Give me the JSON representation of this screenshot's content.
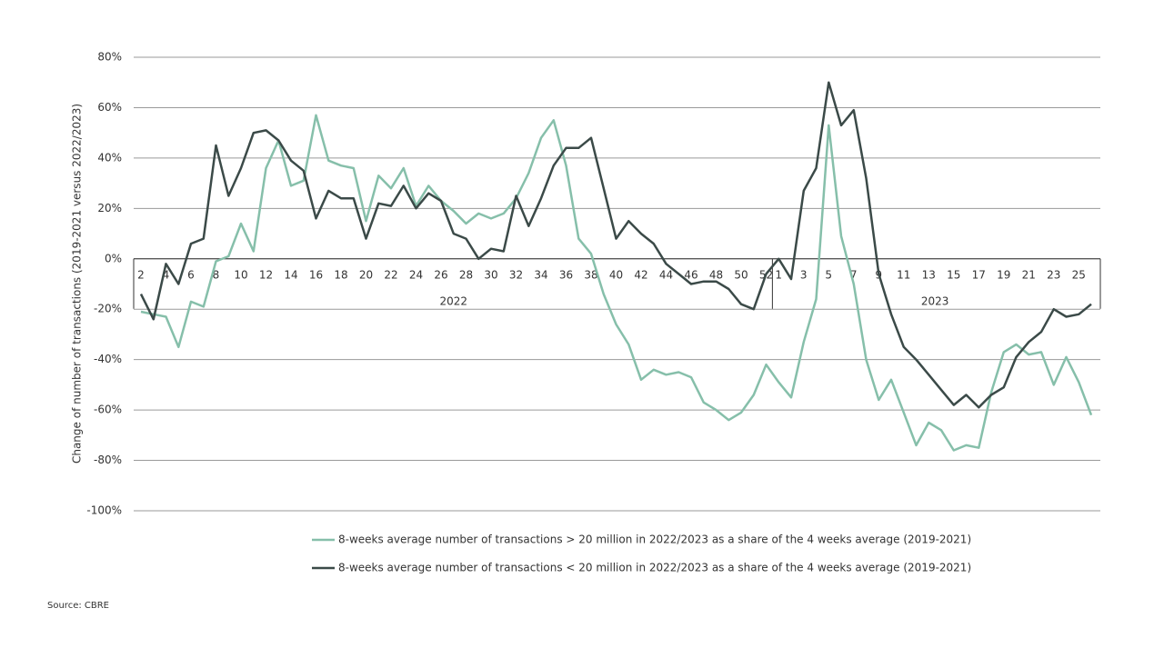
{
  "chart_data": {
    "type": "line",
    "y_label": "Change of number of transactions (2019-2021 versus 2022/2023)",
    "source": "Source: CBRE",
    "category_groups": [
      {
        "name": "2022",
        "categories": [
          2,
          null,
          4,
          null,
          6,
          null,
          8,
          null,
          10,
          null,
          12,
          null,
          14,
          null,
          16,
          null,
          18,
          null,
          20,
          null,
          22,
          null,
          24,
          null,
          26,
          null,
          28,
          null,
          30,
          null,
          32,
          null,
          34,
          null,
          36,
          null,
          38,
          null,
          40,
          null,
          42,
          null,
          44,
          null,
          46,
          null,
          48,
          null,
          50,
          null,
          52
        ]
      },
      {
        "name": "2023",
        "categories": [
          1,
          null,
          3,
          null,
          5,
          null,
          7,
          null,
          9,
          null,
          11,
          null,
          13,
          null,
          15,
          null,
          17,
          null,
          19,
          null,
          21,
          null,
          23,
          null,
          25,
          null
        ]
      }
    ],
    "series": [
      {
        "name": "8-weeks average number of transactions > 20 million in 2022/2023 as a share of the 4 weeks average (2019-2021)",
        "color": "#86bfaa",
        "values": [
          -21,
          -22,
          -23,
          -35,
          -17,
          -19,
          -1,
          1,
          14,
          3,
          36,
          47,
          29,
          31,
          57,
          39,
          37,
          36,
          15,
          33,
          28,
          36,
          21,
          29,
          23,
          19,
          14,
          18,
          16,
          18,
          24,
          34,
          48,
          55,
          37,
          8,
          2,
          -14,
          -26,
          -34,
          -48,
          -44,
          -46,
          -45,
          -47,
          -57,
          -60,
          -64,
          -61,
          -54,
          -42,
          -49,
          -55,
          -33,
          -16,
          53,
          9,
          -10,
          -40,
          -56,
          -48,
          -61,
          -74,
          -65,
          -68,
          -76,
          -74,
          -75,
          -53,
          -37,
          -34,
          -38,
          -37,
          -50,
          -39,
          -49,
          -62
        ]
      },
      {
        "name": "8-weeks average number of transactions < 20 million in 2022/2023 as a share of the 4 weeks average (2019-2021)",
        "color": "#3b4a48",
        "values": [
          -14,
          -24,
          -2,
          -10,
          6,
          8,
          45,
          25,
          36,
          50,
          51,
          47,
          39,
          35,
          16,
          27,
          24,
          24,
          8,
          22,
          21,
          29,
          20,
          26,
          23,
          10,
          8,
          0,
          4,
          3,
          25,
          13,
          24,
          37,
          44,
          44,
          48,
          28,
          8,
          15,
          10,
          6,
          -2,
          -6,
          -10,
          -9,
          -9,
          -12,
          -18,
          -20,
          -6,
          0,
          -8,
          27,
          36,
          70,
          53,
          59,
          32,
          -6,
          -22,
          -35,
          -40,
          -46,
          -52,
          -58,
          -54,
          -59,
          -54,
          -51,
          -39,
          -33,
          -29,
          -20,
          -23,
          -22,
          -18
        ]
      }
    ],
    "ylim": [
      -100,
      80
    ],
    "yticks": [
      {
        "value": -100,
        "label": "-100%"
      },
      {
        "value": -80,
        "label": "-80%"
      },
      {
        "value": -60,
        "label": "-60%"
      },
      {
        "value": -40,
        "label": "-40%"
      },
      {
        "value": -20,
        "label": "-20%"
      },
      {
        "value": 0,
        "label": "0%"
      },
      {
        "value": 20,
        "label": "20%"
      },
      {
        "value": 40,
        "label": "40%"
      },
      {
        "value": 60,
        "label": "60%"
      },
      {
        "value": 80,
        "label": "80%"
      }
    ],
    "grid": true
  }
}
